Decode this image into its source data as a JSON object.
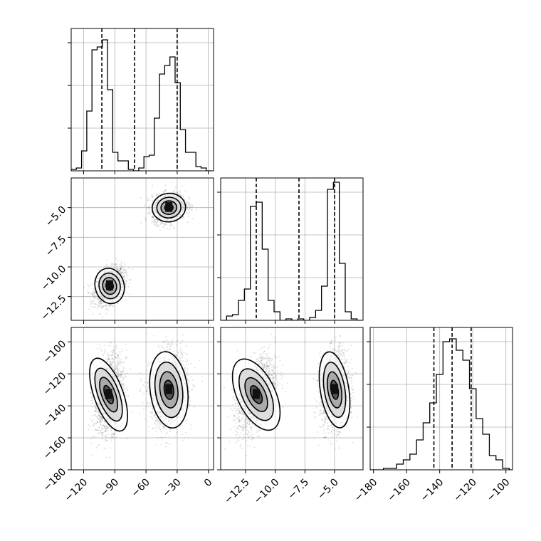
{
  "chart_data": {
    "type": "corner",
    "description_note": "",
    "panels": [
      {
        "id": "hist-0",
        "type": "histogram",
        "x_range": [
          -132,
          5
        ],
        "y_range": [
          0,
          1.0
        ],
        "x_ticks": [
          -120,
          -90,
          -60,
          -30,
          0
        ],
        "y_ticks": [
          0.3,
          0.6,
          0.9
        ],
        "bins": [
          [
            -132,
            -127,
            0.01
          ],
          [
            -127,
            -122,
            0.02
          ],
          [
            -122,
            -117,
            0.14
          ],
          [
            -117,
            -112,
            0.42
          ],
          [
            -112,
            -107,
            0.85
          ],
          [
            -107,
            -102,
            0.87
          ],
          [
            -102,
            -97,
            0.92
          ],
          [
            -97,
            -92,
            0.57
          ],
          [
            -92,
            -87,
            0.13
          ],
          [
            -87,
            -82,
            0.07
          ],
          [
            -82,
            -77,
            0.07
          ],
          [
            -77,
            -72,
            0.01
          ],
          [
            -72,
            -67,
            0.0
          ],
          [
            -67,
            -62,
            0.02
          ],
          [
            -62,
            -57,
            0.1
          ],
          [
            -57,
            -52,
            0.11
          ],
          [
            -52,
            -47,
            0.37
          ],
          [
            -47,
            -42,
            0.68
          ],
          [
            -42,
            -37,
            0.74
          ],
          [
            -37,
            -32,
            0.8
          ],
          [
            -32,
            -27,
            0.62
          ],
          [
            -27,
            -22,
            0.29
          ],
          [
            -22,
            -17,
            0.13
          ],
          [
            -17,
            -12,
            0.13
          ],
          [
            -12,
            -7,
            0.03
          ],
          [
            -7,
            -2,
            0.02
          ],
          [
            -2,
            3,
            0.0
          ]
        ],
        "quantiles": [
          -102.5,
          -71,
          -30
        ]
      },
      {
        "id": "scatter-1-0",
        "type": "density",
        "x_range": [
          -132,
          5
        ],
        "y_range": [
          -14.5,
          -2.5
        ],
        "x_ticks": [
          -120,
          -90,
          -60,
          -30,
          0
        ],
        "y_ticks": [
          -5.0,
          -7.5,
          -10.0,
          -12.5
        ],
        "y_tick_labels": [
          "−5.0",
          "−7.5",
          "−10.0",
          "−12.5"
        ],
        "clusters": [
          {
            "cx": -95,
            "cy": -11.6,
            "sx": 7,
            "sy": 0.75,
            "rho": 0.35,
            "n": 1500
          },
          {
            "cx": -38,
            "cy": -5.0,
            "sx": 8,
            "sy": 0.6,
            "rho": 0.2,
            "n": 1500
          }
        ]
      },
      {
        "id": "hist-1",
        "type": "histogram",
        "x_range": [
          -14.6,
          -2.6
        ],
        "y_range": [
          0,
          1.0
        ],
        "x_ticks": [
          -12.5,
          -10.0,
          -7.5,
          -5.0
        ],
        "y_ticks": [
          0.3,
          0.6,
          0.9
        ],
        "bins": [
          [
            -14.6,
            -14.1,
            0.0
          ],
          [
            -14.1,
            -13.6,
            0.03
          ],
          [
            -13.6,
            -13.1,
            0.04
          ],
          [
            -13.1,
            -12.6,
            0.14
          ],
          [
            -12.6,
            -12.1,
            0.22
          ],
          [
            -12.1,
            -11.6,
            0.8
          ],
          [
            -11.6,
            -11.1,
            0.83
          ],
          [
            -11.1,
            -10.6,
            0.5
          ],
          [
            -10.6,
            -10.1,
            0.14
          ],
          [
            -10.1,
            -9.6,
            0.06
          ],
          [
            -9.6,
            -9.1,
            0.0
          ],
          [
            -9.1,
            -8.6,
            0.01
          ],
          [
            -8.6,
            -8.1,
            0.0
          ],
          [
            -8.1,
            -7.6,
            0.01
          ],
          [
            -7.6,
            -7.1,
            0.0
          ],
          [
            -7.1,
            -6.6,
            0.02
          ],
          [
            -6.6,
            -6.1,
            0.07
          ],
          [
            -6.1,
            -5.6,
            0.24
          ],
          [
            -5.6,
            -5.1,
            0.92
          ],
          [
            -5.1,
            -4.6,
            0.97
          ],
          [
            -4.6,
            -4.1,
            0.4
          ],
          [
            -4.1,
            -3.6,
            0.06
          ],
          [
            -3.6,
            -3.1,
            0.01
          ],
          [
            -3.1,
            -2.6,
            0.0
          ]
        ],
        "quantiles": [
          -11.6,
          -8.0,
          -5.0
        ]
      },
      {
        "id": "scatter-2-0",
        "type": "density",
        "x_range": [
          -132,
          5
        ],
        "y_range": [
          -180,
          -91
        ],
        "x_ticks": [
          -120,
          -90,
          -60,
          -30,
          0
        ],
        "x_tick_labels": [
          "−120",
          "−90",
          "−60",
          "−30",
          "0"
        ],
        "y_ticks": [
          -100,
          -120,
          -140,
          -160,
          -180
        ],
        "y_tick_labels": [
          "−100",
          "−120",
          "−140",
          "−160",
          "−180"
        ],
        "clusters": [
          {
            "cx": -96,
            "cy": -133,
            "sx": 7,
            "sy": 12,
            "rho": 0.25,
            "n": 1500
          },
          {
            "cx": -38,
            "cy": -130,
            "sx": 9,
            "sy": 12,
            "rho": 0.1,
            "n": 1500
          }
        ]
      },
      {
        "id": "scatter-2-1",
        "type": "density",
        "x_range": [
          -14.6,
          -2.6
        ],
        "y_range": [
          -180,
          -91
        ],
        "x_ticks": [
          -12.5,
          -10.0,
          -7.5,
          -5.0
        ],
        "x_tick_labels": [
          "−12.5",
          "−10.0",
          "−7.5",
          "−5.0"
        ],
        "y_ticks": [
          -100,
          -120,
          -140,
          -160,
          -180
        ],
        "clusters": [
          {
            "cx": -11.6,
            "cy": -133,
            "sx": 0.8,
            "sy": 12,
            "rho": 0.45,
            "n": 1500
          },
          {
            "cx": -5.0,
            "cy": -130,
            "sx": 0.6,
            "sy": 12,
            "rho": 0.1,
            "n": 1500
          }
        ]
      },
      {
        "id": "hist-2",
        "type": "histogram",
        "x_range": [
          -182,
          -96
        ],
        "y_range": [
          0,
          1.0
        ],
        "x_ticks": [
          -180,
          -160,
          -140,
          -120,
          -100
        ],
        "x_tick_labels": [
          "−180",
          "−160",
          "−140",
          "−120",
          "−100"
        ],
        "y_ticks": [
          0.3,
          0.6,
          0.9
        ],
        "bins": [
          [
            -182,
            -178,
            0.0
          ],
          [
            -178,
            -174,
            0.0
          ],
          [
            -174,
            -170,
            0.01
          ],
          [
            -170,
            -166,
            0.01
          ],
          [
            -166,
            -162,
            0.04
          ],
          [
            -162,
            -158,
            0.07
          ],
          [
            -158,
            -154,
            0.11
          ],
          [
            -154,
            -150,
            0.21
          ],
          [
            -150,
            -146,
            0.33
          ],
          [
            -146,
            -142,
            0.47
          ],
          [
            -142,
            -138,
            0.67
          ],
          [
            -138,
            -134,
            0.9
          ],
          [
            -134,
            -130,
            0.92
          ],
          [
            -130,
            -126,
            0.84
          ],
          [
            -126,
            -122,
            0.77
          ],
          [
            -122,
            -118,
            0.57
          ],
          [
            -118,
            -114,
            0.36
          ],
          [
            -114,
            -110,
            0.25
          ],
          [
            -110,
            -106,
            0.1
          ],
          [
            -106,
            -102,
            0.07
          ],
          [
            -102,
            -98,
            0.01
          ],
          [
            -98,
            -96,
            0.0
          ]
        ],
        "quantiles": [
          -143.5,
          -132.5,
          -121
        ]
      }
    ]
  }
}
